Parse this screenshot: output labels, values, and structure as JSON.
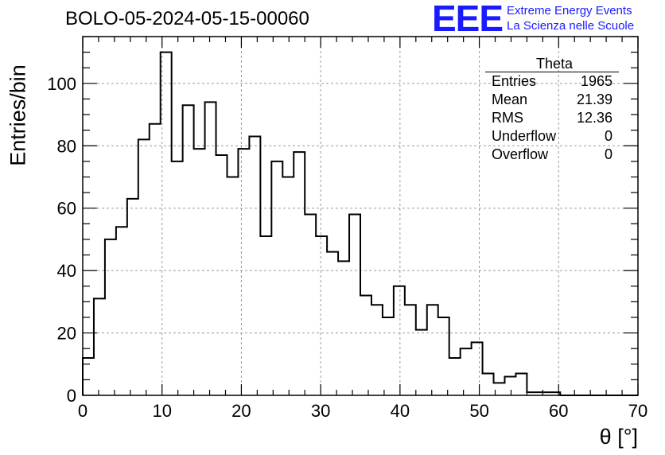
{
  "title": "BOLO-05-2024-05-15-00060",
  "logo": {
    "mark": "EEE",
    "line1": "Extreme Energy Events",
    "line2": "La Scienza nelle Scuole",
    "color": "#1a1aff"
  },
  "stats_box": {
    "title": "Theta",
    "rows": [
      {
        "label": "Entries",
        "value": "1965"
      },
      {
        "label": "Mean",
        "value": "21.39"
      },
      {
        "label": "RMS",
        "value": "12.36"
      },
      {
        "label": "Underflow",
        "value": "0"
      },
      {
        "label": "Overflow",
        "value": "0"
      }
    ]
  },
  "chart_data": {
    "type": "histogram",
    "title": "BOLO-05-2024-05-15-00060",
    "xlabel": "θ [°]",
    "ylabel": "Entries/bin",
    "xlim": [
      0,
      70
    ],
    "ylim": [
      0,
      115
    ],
    "bin_width": 1.4,
    "bin_edges_start": 0,
    "x_ticks": [
      0,
      10,
      20,
      30,
      40,
      50,
      60,
      70
    ],
    "y_ticks": [
      0,
      20,
      40,
      60,
      80,
      100
    ],
    "grid": true,
    "values": [
      12,
      31,
      50,
      54,
      63,
      82,
      87,
      110,
      75,
      93,
      79,
      94,
      77,
      70,
      79,
      83,
      51,
      75,
      70,
      78,
      58,
      51,
      46,
      43,
      58,
      32,
      29,
      25,
      35,
      29,
      21,
      29,
      25,
      12,
      15,
      17,
      7,
      4,
      6,
      7,
      1,
      1,
      1,
      0,
      0,
      0,
      0,
      0,
      0,
      0
    ]
  }
}
